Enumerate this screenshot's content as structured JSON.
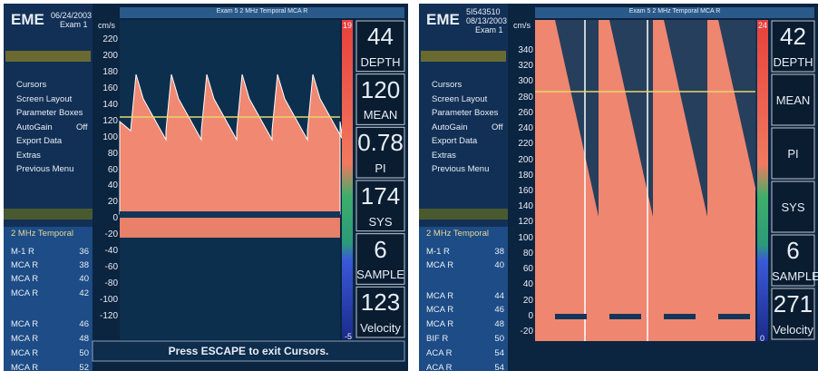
{
  "panels": [
    {
      "brand": "EME",
      "id": null,
      "date": "06/24/2003",
      "exam": "Exam 1",
      "title": "Exam 5 2 MHz Temporal MCA R",
      "unit": "cm/s",
      "axis": [
        "220",
        "200",
        "180",
        "160",
        "140",
        "120",
        "100",
        "80",
        "60",
        "40",
        "20",
        "0",
        "-20",
        "-40",
        "-60",
        "-80",
        "-100",
        "-120"
      ],
      "scale_top": "19",
      "scale_bottom": "-5",
      "menu": [
        "Cursors",
        "Screen Layout",
        "Parameter Boxes",
        "AutoGain",
        "Export Data",
        "Extras",
        "Previous Menu"
      ],
      "autogain": "Off",
      "probe": "2 MHz Temporal",
      "channels": [
        {
          "name": "M-1 R",
          "value": "36"
        },
        {
          "name": "MCA R",
          "value": "38"
        },
        {
          "name": "MCA R",
          "value": "40"
        },
        {
          "name": "MCA R",
          "value": "42"
        },
        {
          "name": "MCA R",
          "value": "46"
        },
        {
          "name": "MCA R",
          "value": "48"
        },
        {
          "name": "MCA R",
          "value": "50"
        },
        {
          "name": "MCA R",
          "value": "52"
        }
      ],
      "params": [
        {
          "value": "44",
          "label": "DEPTH"
        },
        {
          "value": "120",
          "label": "MEAN"
        },
        {
          "value": "0.78",
          "label": "PI"
        },
        {
          "value": "174",
          "label": "SYS"
        },
        {
          "value": "6",
          "label": "SAMPLE"
        },
        {
          "value": "123",
          "label": "Velocity"
        }
      ],
      "footer": "Press ESCAPE to exit Cursors."
    },
    {
      "brand": "EME",
      "id": "5I543510",
      "date": "08/13/2003",
      "exam": "Exam 1",
      "title": "Exam 5 2 MHz Temporal MCA R",
      "unit": "cm/s",
      "axis": [
        "340",
        "320",
        "300",
        "280",
        "260",
        "240",
        "220",
        "200",
        "180",
        "160",
        "140",
        "120",
        "100",
        "80",
        "60",
        "40",
        "20",
        "0",
        "-20"
      ],
      "scale_top": "24",
      "scale_bottom": "0",
      "menu": [
        "Cursors",
        "Screen Layout",
        "Parameter Boxes",
        "AutoGain",
        "Export Data",
        "Extras",
        "Previous Menu"
      ],
      "autogain": "Off",
      "probe": "2 MHz Temporal",
      "channels": [
        {
          "name": "M-1 R",
          "value": "38"
        },
        {
          "name": "MCA R",
          "value": "40"
        },
        {
          "name": "MCA R",
          "value": "44"
        },
        {
          "name": "MCA R",
          "value": "46"
        },
        {
          "name": "MCA R",
          "value": "48"
        },
        {
          "name": "BIF R",
          "value": "50"
        },
        {
          "name": "ACA R",
          "value": "54"
        },
        {
          "name": "ACA R",
          "value": "54"
        }
      ],
      "params": [
        {
          "value": "42",
          "label": "DEPTH"
        },
        {
          "label": "MEAN"
        },
        {
          "label": "PI"
        },
        {
          "label": "SYS"
        },
        {
          "value": "6",
          "label": "SAMPLE"
        },
        {
          "value": "271",
          "label": "Velocity"
        }
      ],
      "footer": null
    }
  ]
}
